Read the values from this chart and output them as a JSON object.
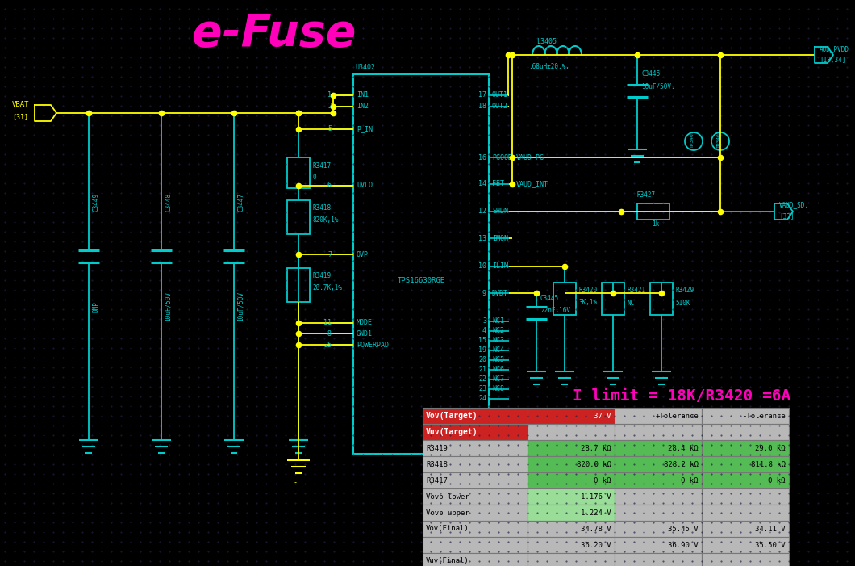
{
  "bg_color": "#000000",
  "title": "e-Fuse",
  "title_color": "#ff00bb",
  "cyan": "#00cccc",
  "yellow": "#ffff00",
  "magenta": "#ff00bb",
  "white": "#ffffff",
  "ilimit_text": "I limit = 18K/R3420 =6A",
  "table_rows": [
    [
      "Vov(Target)",
      "37 V",
      "+Tolerance",
      "-Tolerance"
    ],
    [
      "Vuv(Target)",
      "",
      "",
      ""
    ],
    [
      "R3419",
      "28.7 kΩ",
      "28.4 kΩ",
      "29.0 kΩ"
    ],
    [
      "R3418",
      "820.0 kΩ",
      "828.2 kΩ",
      "811.8 kΩ"
    ],
    [
      "R3417",
      "0 kΩ",
      "0 kΩ",
      "0 kΩ"
    ],
    [
      "Vovp lower",
      "1.176 V",
      "",
      ""
    ],
    [
      "Vovp upper",
      "1.224 V",
      "",
      ""
    ],
    [
      "Vov(Final)",
      "34.78 V",
      "35.45 V",
      "34.11 V"
    ],
    [
      "",
      "36.20 V",
      "36.90 V",
      "35.50 V"
    ],
    [
      "Vuv(Final)",
      "",
      "",
      ""
    ]
  ]
}
